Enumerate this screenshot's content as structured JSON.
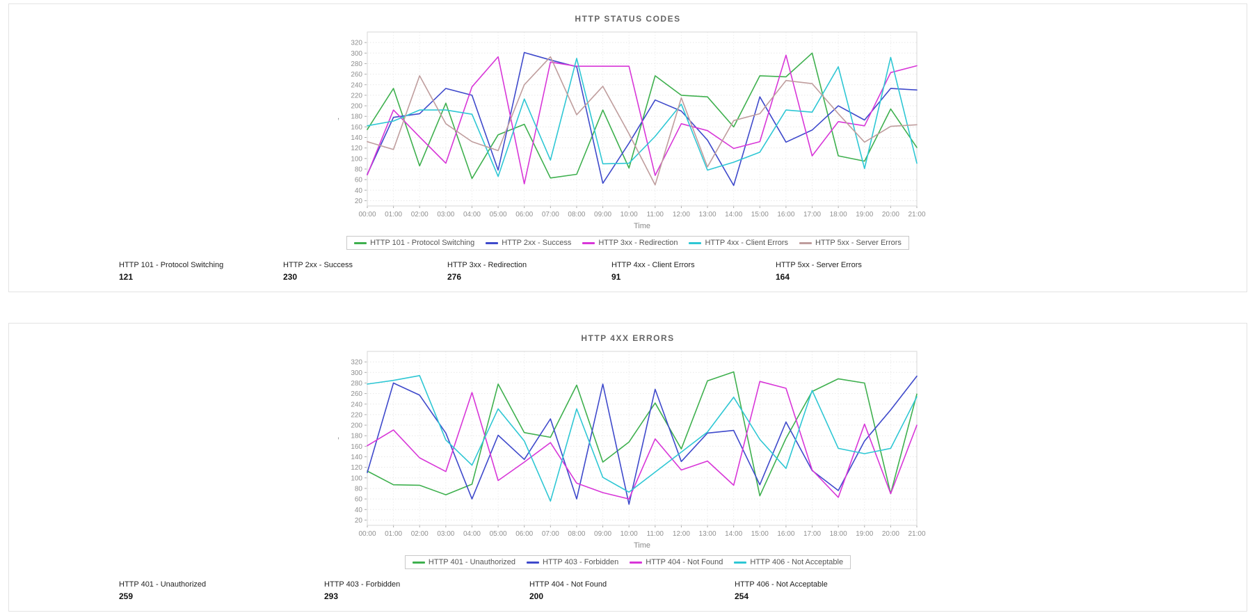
{
  "panels": [
    {
      "title": "HTTP STATUS CODES",
      "summary": [
        {
          "label": "HTTP 101 - Protocol Switching",
          "value": "121"
        },
        {
          "label": "HTTP 2xx - Success",
          "value": "230"
        },
        {
          "label": "HTTP 3xx - Redirection",
          "value": "276"
        },
        {
          "label": "HTTP 4xx - Client Errors",
          "value": "91"
        },
        {
          "label": "HTTP 5xx - Server Errors",
          "value": "164"
        }
      ]
    },
    {
      "title": "HTTP 4XX ERRORS",
      "summary": [
        {
          "label": "HTTP 401 - Unauthorized",
          "value": "259"
        },
        {
          "label": "HTTP 403 - Forbidden",
          "value": "293"
        },
        {
          "label": "HTTP 404 - Not Found",
          "value": "200"
        },
        {
          "label": "HTTP 406 - Not Acceptable",
          "value": "254"
        }
      ]
    }
  ],
  "chart_data": [
    {
      "type": "line",
      "title": "HTTP STATUS CODES",
      "xlabel": "Time",
      "ylabel": ",",
      "x": [
        "00:00",
        "01:00",
        "02:00",
        "03:00",
        "04:00",
        "05:00",
        "06:00",
        "07:00",
        "08:00",
        "09:00",
        "10:00",
        "11:00",
        "12:00",
        "13:00",
        "14:00",
        "15:00",
        "16:00",
        "17:00",
        "18:00",
        "19:00",
        "20:00",
        "21:00"
      ],
      "ylim": [
        20,
        320
      ],
      "ytick_step": 20,
      "grid": true,
      "legend_position": "bottom",
      "series": [
        {
          "name": "HTTP 101 - Protocol Switching",
          "color": "#3eb04e",
          "values": [
            155,
            233,
            86,
            205,
            62,
            145,
            165,
            63,
            70,
            192,
            82,
            257,
            220,
            217,
            160,
            257,
            255,
            300,
            105,
            95,
            194,
            121
          ]
        },
        {
          "name": "HTTP 2xx - Success",
          "color": "#3e49cb",
          "values": [
            70,
            178,
            185,
            233,
            220,
            78,
            301,
            287,
            274,
            53,
            129,
            211,
            190,
            135,
            49,
            217,
            131,
            154,
            200,
            173,
            233,
            230
          ]
        },
        {
          "name": "HTTP 3xx - Redirection",
          "color": "#d836d8",
          "values": [
            69,
            192,
            141,
            91,
            236,
            293,
            52,
            283,
            275,
            275,
            275,
            68,
            166,
            153,
            119,
            132,
            296,
            105,
            170,
            162,
            263,
            276
          ]
        },
        {
          "name": "HTTP 4xx - Client Errors",
          "color": "#2ec7d4",
          "values": [
            162,
            171,
            192,
            192,
            184,
            66,
            213,
            97,
            290,
            90,
            91,
            142,
            203,
            78,
            93,
            112,
            192,
            188,
            274,
            81,
            292,
            91
          ]
        },
        {
          "name": "HTTP 5xx - Server Errors",
          "color": "#bf9d9d",
          "values": [
            132,
            117,
            257,
            166,
            132,
            115,
            240,
            293,
            183,
            237,
            147,
            50,
            215,
            84,
            172,
            185,
            248,
            242,
            185,
            131,
            161,
            164
          ]
        }
      ]
    },
    {
      "type": "line",
      "title": "HTTP 4XX ERRORS",
      "xlabel": "Time",
      "ylabel": ",",
      "x": [
        "00:00",
        "01:00",
        "02:00",
        "03:00",
        "04:00",
        "05:00",
        "06:00",
        "07:00",
        "08:00",
        "09:00",
        "10:00",
        "11:00",
        "12:00",
        "13:00",
        "14:00",
        "15:00",
        "16:00",
        "17:00",
        "18:00",
        "19:00",
        "20:00",
        "21:00"
      ],
      "ylim": [
        20,
        320
      ],
      "ytick_step": 20,
      "grid": true,
      "legend_position": "bottom",
      "series": [
        {
          "name": "HTTP 401 - Unauthorized",
          "color": "#3eb04e",
          "values": [
            113,
            87,
            86,
            68,
            88,
            278,
            186,
            177,
            276,
            130,
            168,
            242,
            155,
            284,
            301,
            66,
            175,
            264,
            288,
            280,
            70,
            259
          ]
        },
        {
          "name": "HTTP 403 - Forbidden",
          "color": "#3e49cb",
          "values": [
            110,
            280,
            257,
            185,
            60,
            181,
            135,
            212,
            60,
            278,
            50,
            268,
            131,
            185,
            190,
            87,
            206,
            114,
            76,
            170,
            229,
            293
          ]
        },
        {
          "name": "HTTP 404 - Not Found",
          "color": "#d836d8",
          "values": [
            161,
            191,
            138,
            112,
            262,
            95,
            130,
            167,
            90,
            72,
            60,
            174,
            115,
            132,
            86,
            283,
            270,
            115,
            63,
            202,
            70,
            200
          ]
        },
        {
          "name": "HTTP 406 - Not Acceptable",
          "color": "#2ec7d4",
          "values": [
            278,
            285,
            294,
            172,
            124,
            231,
            170,
            56,
            231,
            101,
            73,
            111,
            149,
            187,
            253,
            173,
            118,
            266,
            156,
            146,
            156,
            254
          ]
        }
      ]
    }
  ]
}
